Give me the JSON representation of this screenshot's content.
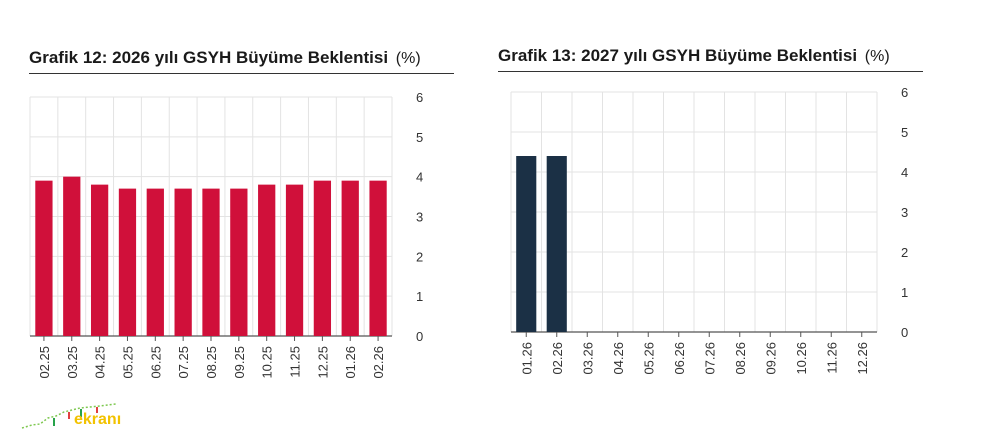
{
  "chart_data": [
    {
      "type": "bar",
      "title": "Grafik 12: 2026 yılı GSYH Büyüme Beklentisi",
      "unit_label": "(%)",
      "categories": [
        "02.25",
        "03.25",
        "04.25",
        "05.25",
        "06.25",
        "07.25",
        "08.25",
        "09.25",
        "10.25",
        "11.25",
        "12.25",
        "01.26",
        "02.26"
      ],
      "values": [
        3.9,
        4.0,
        3.8,
        3.7,
        3.7,
        3.7,
        3.7,
        3.7,
        3.8,
        3.8,
        3.9,
        3.9,
        3.9
      ],
      "y_ticks": [
        "0",
        "1",
        "2",
        "3",
        "4",
        "5",
        "6"
      ],
      "ylim": [
        0,
        6
      ],
      "y_axis_position": "right",
      "grid": true,
      "bar_color": "#d0103a"
    },
    {
      "type": "bar",
      "title": "Grafik 13: 2027 yılı GSYH Büyüme Beklentisi",
      "unit_label": "(%)",
      "categories": [
        "01.26",
        "02.26",
        "03.26",
        "04.26",
        "05.26",
        "06.26",
        "07.26",
        "08.26",
        "09.26",
        "10.26",
        "11.26",
        "12.26"
      ],
      "values": [
        4.4,
        4.4,
        null,
        null,
        null,
        null,
        null,
        null,
        null,
        null,
        null,
        null
      ],
      "y_ticks": [
        "0",
        "1",
        "2",
        "3",
        "4",
        "5",
        "6"
      ],
      "ylim": [
        0,
        6
      ],
      "y_axis_position": "right",
      "grid": true,
      "bar_color": "#1b3045"
    }
  ],
  "logo": {
    "text": "ekranı",
    "icon": "chart-line-logo-icon",
    "color": "#f2c200"
  }
}
